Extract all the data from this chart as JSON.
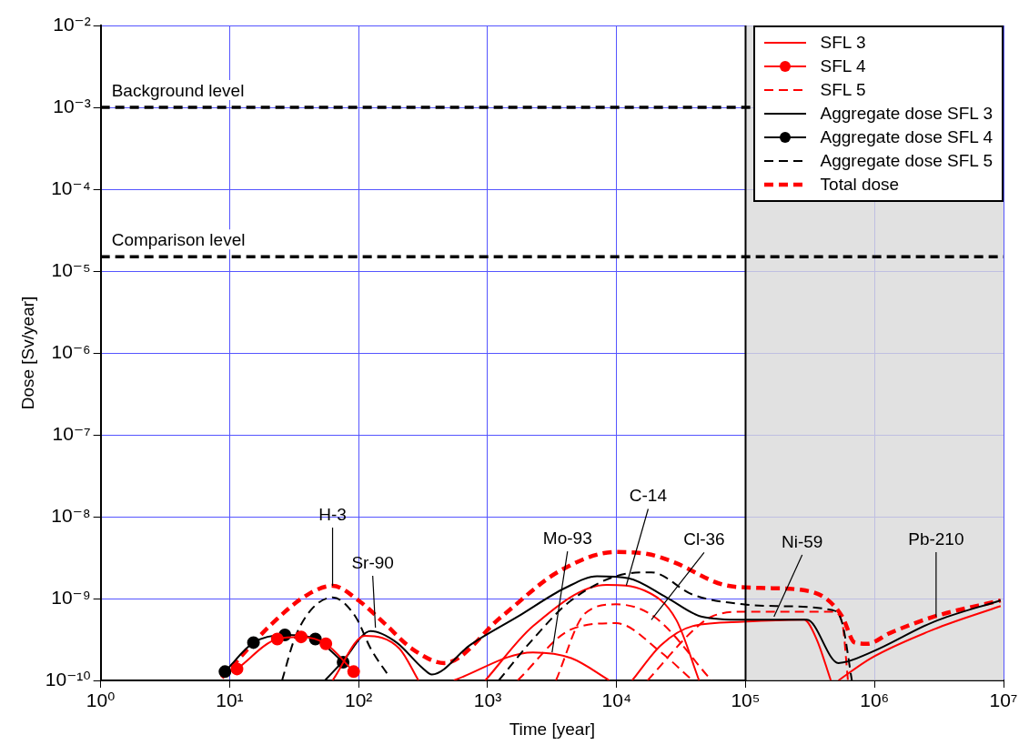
{
  "chart_data": {
    "type": "line",
    "xlabel": "Time [year]",
    "ylabel": "Dose [Sv/year]",
    "log": "xy",
    "grid": true,
    "legend": "top right",
    "xlim": [
      1,
      10000000
    ],
    "ylim": [
      1e-10,
      0.01
    ],
    "xticks": [
      {
        "value": 1,
        "label": "10⁰"
      },
      {
        "value": 10,
        "label": "10¹"
      },
      {
        "value": 100,
        "label": "10²"
      },
      {
        "value": 1000,
        "label": "10³"
      },
      {
        "value": 10000,
        "label": "10⁴"
      },
      {
        "value": 100000,
        "label": "10⁵"
      },
      {
        "value": 1000000,
        "label": "10⁶"
      },
      {
        "value": 10000000,
        "label": "10⁷"
      }
    ],
    "yticks": [
      {
        "value": 1e-10,
        "label": "10⁻¹⁰"
      },
      {
        "value": 1e-09,
        "label": "10⁻⁹"
      },
      {
        "value": 1e-08,
        "label": "10⁻⁸"
      },
      {
        "value": 1e-07,
        "label": "10⁻⁷"
      },
      {
        "value": 1e-06,
        "label": "10⁻⁶"
      },
      {
        "value": 1e-05,
        "label": "10⁻⁵"
      },
      {
        "value": 0.0001,
        "label": "10⁻⁴"
      },
      {
        "value": 0.001,
        "label": "10⁻³"
      },
      {
        "value": 0.01,
        "label": "10⁻²"
      }
    ],
    "series": [
      {
        "name": "SFL 3",
        "color": "#ff0000",
        "line_style": "solid",
        "marker": "none",
        "x": [
          62.8,
          112,
          207,
          291
        ],
        "values": [
          1e-10,
          3.5e-10,
          2.45e-10,
          1e-10
        ]
      },
      {
        "name": "SFL 4",
        "color": "#ff0000",
        "line_style": "solid",
        "marker": "circle",
        "x": [
          11.4,
          23.4,
          35.8,
          55.7,
          91.5
        ],
        "values": [
          1.38e-10,
          3.2e-10,
          3.4e-10,
          2.8e-10,
          1.28e-10
        ]
      },
      {
        "name": "SFL 5",
        "color": "#ff0000",
        "line_style": "dashed",
        "marker": "none",
        "x": [
          3390,
          5650,
          9900,
          19600,
          54400
        ],
        "values": [
          1e-10,
          6.5e-10,
          8.5e-10,
          6e-10,
          1e-10
        ]
      },
      {
        "name": "Aggregate dose SFL 3",
        "color": "#000000",
        "line_style": "solid",
        "marker": "none",
        "x": [
          54.8,
          74.5,
          124,
          197,
          312,
          370,
          731,
          1710,
          4010,
          7050,
          12400,
          24400,
          45900,
          95500,
          299000,
          525000,
          938000,
          2880000,
          9500000
        ],
        "values": [
          1e-10,
          1.67e-10,
          4e-10,
          2.9e-10,
          1.42e-10,
          1.18e-10,
          2.7e-10,
          6e-10,
          1.35e-09,
          1.87e-09,
          1.77e-09,
          1.03e-09,
          6e-10,
          5.5e-10,
          5.5e-10,
          1.63e-10,
          2.2e-10,
          5.2e-10,
          9.5e-10
        ]
      },
      {
        "name": "Aggregate dose SFL 4",
        "color": "#000000",
        "line_style": "solid",
        "marker": "circle",
        "x": [
          9.2,
          15.3,
          26.8,
          46.2,
          75.8
        ],
        "values": [
          1.28e-10,
          2.9e-10,
          3.6e-10,
          3.2e-10,
          1.67e-10
        ]
      },
      {
        "name": "Aggregate dose SFL 5",
        "color": "#000000",
        "line_style": "dashed",
        "marker": "none",
        "x": [
          25.5,
          31.8,
          42.5,
          62.8,
          94.6,
          124,
          175,
          600,
          1220,
          2250,
          4450,
          12400,
          18600,
          38700,
          95500,
          171000,
          474000,
          562000,
          667000
        ],
        "values": [
          1e-10,
          3.2e-10,
          7.2e-10,
          1.03e-09,
          6e-10,
          2.45e-10,
          1.08e-10,
          null,
          1e-10,
          3.2e-10,
          9.5e-10,
          2.03e-09,
          2.09e-09,
          1.12e-09,
          8.5e-10,
          8.1e-10,
          7.2e-10,
          5e-10,
          1e-10
        ]
      },
      {
        "color": "#ff0000",
        "line_style": "solid",
        "marker": "none",
        "x": [
          547,
          2250,
          4450,
          8790
        ],
        "values": [
          1e-10,
          2.2e-10,
          1.87e-10,
          1e-10
        ]
      },
      {
        "color": "#ff0000",
        "line_style": "solid",
        "marker": "none",
        "x": [
          960,
          2250,
          8350,
          16500,
          29000,
          43600
        ],
        "values": [
          1e-10,
          4.6e-10,
          1.47e-09,
          1.25e-09,
          5.5e-10,
          1e-10
        ]
      },
      {
        "color": "#ff0000",
        "line_style": "solid",
        "marker": "none",
        "x": [
          13200,
          22100,
          38700,
          95500,
          284000,
          355000,
          458000
        ],
        "values": [
          1e-10,
          2.7e-10,
          4.6e-10,
          5.2e-10,
          5.5e-10,
          3.2e-10,
          1e-10
        ]
      },
      {
        "color": "#ff0000",
        "line_style": "solid",
        "marker": "none",
        "x": [
          525000,
          938000,
          2880000,
          9500000
        ],
        "values": [
          1e-10,
          1.87e-10,
          4.2e-10,
          8.1e-10
        ]
      },
      {
        "color": "#ff0000",
        "line_style": "dashed",
        "marker": "none",
        "x": [
          1710,
          4450,
          9900,
          22100,
          38700
        ],
        "values": [
          1e-10,
          4.2e-10,
          5e-10,
          2.2e-10,
          1e-10
        ]
      },
      {
        "color": "#ff0000",
        "line_style": "dashed",
        "marker": "none",
        "x": [
          17400,
          38700,
          54400,
          95500,
          474000,
          562000,
          622000
        ],
        "values": [
          1e-10,
          4e-10,
          6e-10,
          6.9e-10,
          6.9e-10,
          5e-10,
          1e-10
        ]
      },
      {
        "name": "Total dose",
        "color": "#ff0000",
        "line_style": "dashed",
        "marker": "none",
        "x": [
          8.7,
          21.5,
          40.4,
          62.8,
          99.5,
          158,
          263,
          461,
          1280,
          3560,
          9900,
          17400,
          27500,
          67900,
          128000,
          266000,
          421000,
          562000,
          702000,
          875000,
          1320000,
          2880000,
          9500000
        ],
        "values": [
          1.08e-10,
          5e-10,
          1.12e-09,
          1.43e-09,
          9.5e-10,
          5e-10,
          2.4e-10,
          1.63e-10,
          6e-10,
          2.14e-09,
          3.7e-09,
          3.5e-09,
          2.8e-09,
          1.47e-09,
          1.35e-09,
          1.28e-09,
          1e-09,
          6e-10,
          2.9e-10,
          2.8e-10,
          3.8e-10,
          6e-10,
          9.5e-10
        ]
      }
    ],
    "ref_lines": [
      {
        "axis": "x",
        "value": 100000,
        "color": "#000000",
        "line_style": "solid"
      },
      {
        "axis": "y",
        "value": 0.001,
        "label": "Background level",
        "color": "#000000",
        "line_style": "dashed"
      },
      {
        "axis": "y",
        "value": 1.5e-05,
        "label": "Comparison level",
        "color": "#000000",
        "line_style": "dashed"
      }
    ],
    "bands": [
      {
        "axis": "x",
        "from": 100000,
        "to": 10000000,
        "color": "#d9d9d9"
      }
    ],
    "annotations": [
      {
        "text": "H-3",
        "x": 62.8,
        "y": 1.43e-09
      },
      {
        "text": "Sr-90",
        "x": 135,
        "y": 4.4e-10
      },
      {
        "text": "Mo-93",
        "x": 3160,
        "y": 2.2e-10
      },
      {
        "text": "C-14",
        "x": 11900,
        "y": 1.45e-09
      },
      {
        "text": "Cl-36",
        "x": 18600,
        "y": 5.5e-10
      },
      {
        "text": "Ni-59",
        "x": 166000,
        "y": 6e-10
      },
      {
        "text": "Pb-210",
        "x": 3000000,
        "y": 6e-10
      }
    ]
  }
}
